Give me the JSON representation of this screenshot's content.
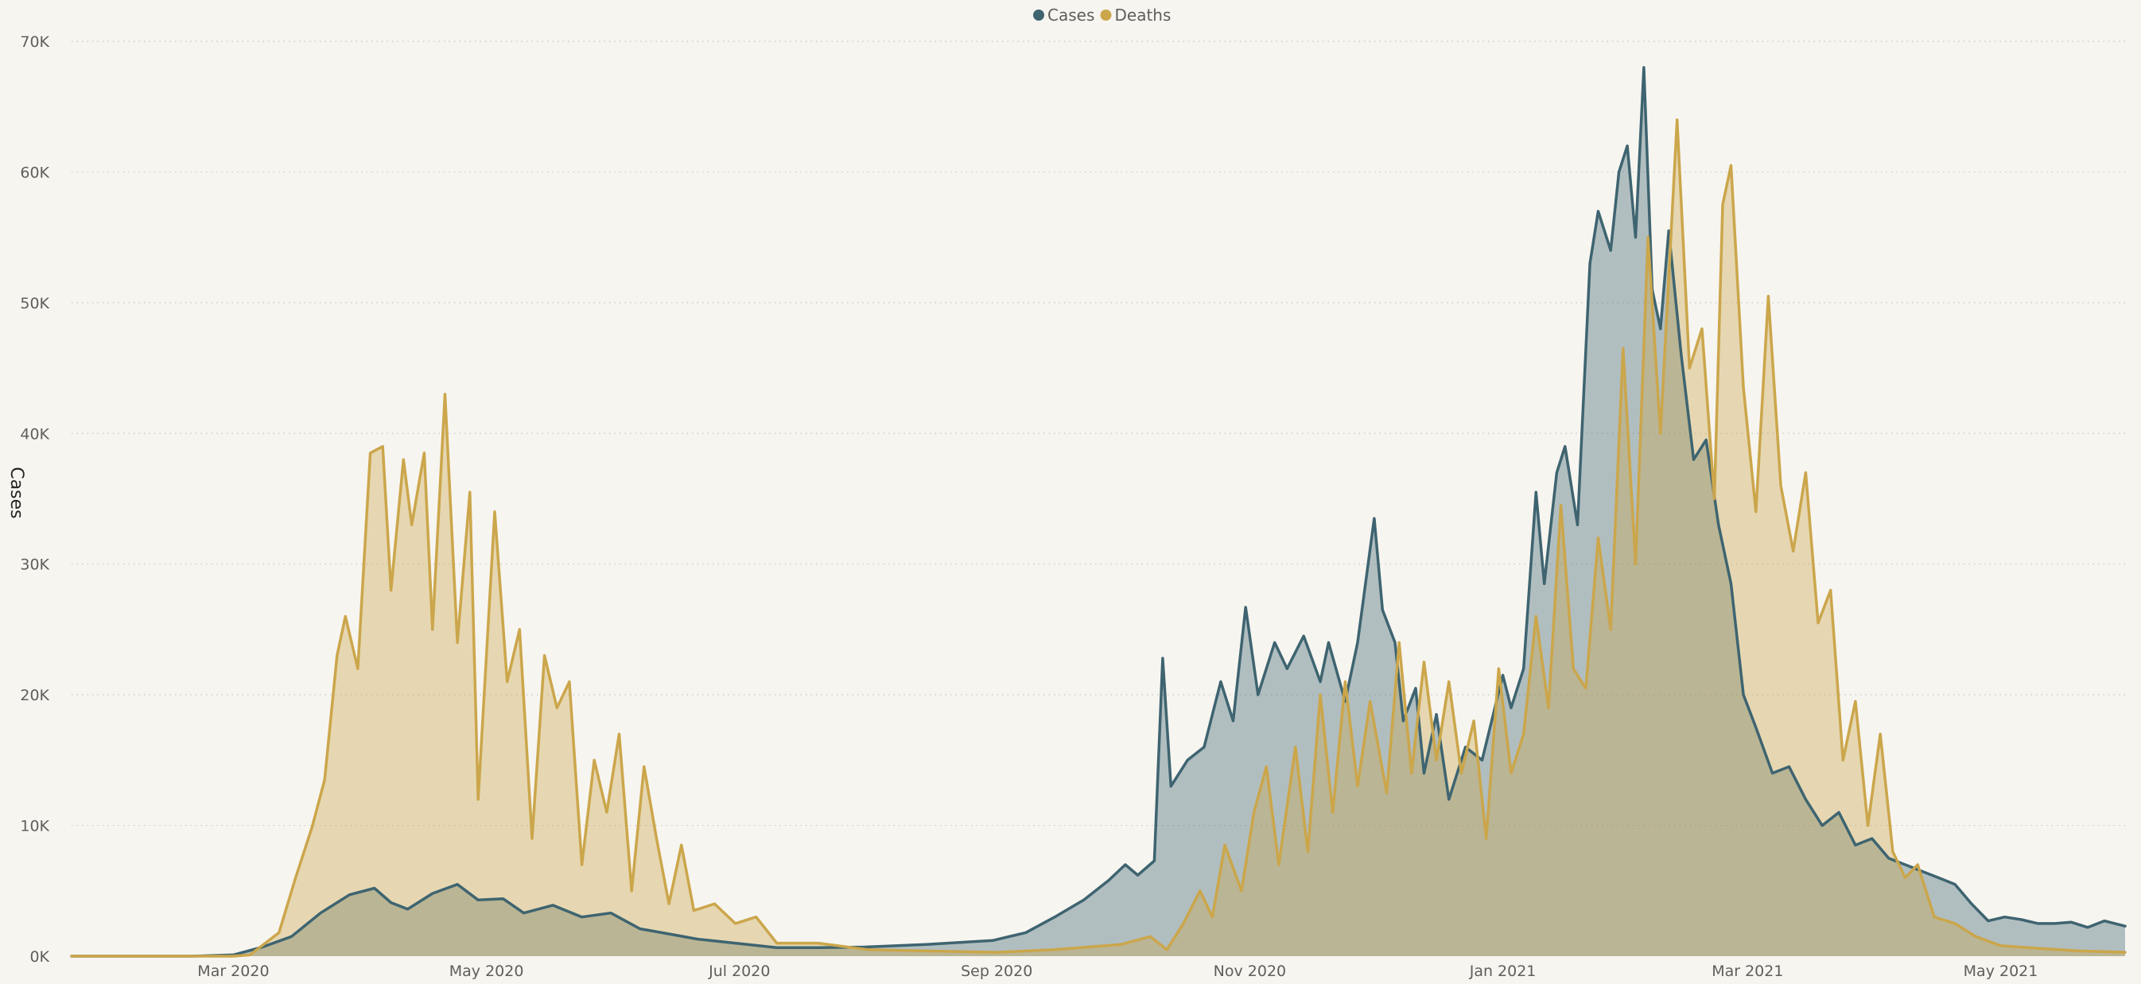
{
  "chart_data": {
    "type": "area",
    "title": "",
    "ylabel": "Cases",
    "xlabel": "",
    "ylim": [
      0,
      70000
    ],
    "xlim": [
      "2020-01-22",
      "2021-05-31"
    ],
    "grid": true,
    "legend_position": "top-center",
    "y_ticks": [
      {
        "value": 0,
        "label": "0K"
      },
      {
        "value": 10000,
        "label": "10K"
      },
      {
        "value": 20000,
        "label": "20K"
      },
      {
        "value": 30000,
        "label": "30K"
      },
      {
        "value": 40000,
        "label": "40K"
      },
      {
        "value": 50000,
        "label": "50K"
      },
      {
        "value": 60000,
        "label": "60K"
      },
      {
        "value": 70000,
        "label": "70K"
      }
    ],
    "x_ticks": [
      {
        "date": "2020-03-01",
        "label": "Mar 2020"
      },
      {
        "date": "2020-05-01",
        "label": "May 2020"
      },
      {
        "date": "2020-07-01",
        "label": "Jul 2020"
      },
      {
        "date": "2020-09-01",
        "label": "Sep 2020"
      },
      {
        "date": "2020-11-01",
        "label": "Nov 2020"
      },
      {
        "date": "2021-01-01",
        "label": "Jan 2021"
      },
      {
        "date": "2021-03-01",
        "label": "Mar 2021"
      },
      {
        "date": "2021-05-01",
        "label": "May 2021"
      }
    ],
    "series": [
      {
        "name": "Cases",
        "color": "#3e6470",
        "fill": "#3e6470",
        "points": [
          [
            "2020-01-22",
            0
          ],
          [
            "2020-02-20",
            0
          ],
          [
            "2020-03-01",
            100
          ],
          [
            "2020-03-08",
            700
          ],
          [
            "2020-03-15",
            1500
          ],
          [
            "2020-03-22",
            3300
          ],
          [
            "2020-03-29",
            4700
          ],
          [
            "2020-04-04",
            5200
          ],
          [
            "2020-04-08",
            4100
          ],
          [
            "2020-04-12",
            3600
          ],
          [
            "2020-04-18",
            4800
          ],
          [
            "2020-04-24",
            5500
          ],
          [
            "2020-04-29",
            4300
          ],
          [
            "2020-05-05",
            4400
          ],
          [
            "2020-05-10",
            3300
          ],
          [
            "2020-05-17",
            3900
          ],
          [
            "2020-05-24",
            3000
          ],
          [
            "2020-05-31",
            3300
          ],
          [
            "2020-06-07",
            2100
          ],
          [
            "2020-06-14",
            1700
          ],
          [
            "2020-06-21",
            1300
          ],
          [
            "2020-06-30",
            1000
          ],
          [
            "2020-07-10",
            650
          ],
          [
            "2020-07-20",
            650
          ],
          [
            "2020-07-31",
            700
          ],
          [
            "2020-08-15",
            900
          ],
          [
            "2020-08-31",
            1200
          ],
          [
            "2020-09-08",
            1800
          ],
          [
            "2020-09-15",
            3000
          ],
          [
            "2020-09-22",
            4300
          ],
          [
            "2020-09-28",
            5800
          ],
          [
            "2020-10-02",
            7000
          ],
          [
            "2020-10-05",
            6200
          ],
          [
            "2020-10-09",
            7300
          ],
          [
            "2020-10-11",
            22800
          ],
          [
            "2020-10-13",
            13000
          ],
          [
            "2020-10-17",
            15000
          ],
          [
            "2020-10-21",
            16000
          ],
          [
            "2020-10-25",
            21000
          ],
          [
            "2020-10-28",
            18000
          ],
          [
            "2020-10-31",
            26700
          ],
          [
            "2020-11-03",
            20000
          ],
          [
            "2020-11-07",
            24000
          ],
          [
            "2020-11-10",
            22000
          ],
          [
            "2020-11-14",
            24500
          ],
          [
            "2020-11-18",
            21000
          ],
          [
            "2020-11-20",
            24000
          ],
          [
            "2020-11-24",
            19500
          ],
          [
            "2020-11-27",
            24000
          ],
          [
            "2020-12-01",
            33500
          ],
          [
            "2020-12-03",
            26500
          ],
          [
            "2020-12-06",
            24000
          ],
          [
            "2020-12-08",
            18000
          ],
          [
            "2020-12-11",
            20500
          ],
          [
            "2020-12-13",
            14000
          ],
          [
            "2020-12-16",
            18500
          ],
          [
            "2020-12-19",
            12000
          ],
          [
            "2020-12-23",
            16000
          ],
          [
            "2020-12-27",
            15000
          ],
          [
            "2021-01-01",
            21500
          ],
          [
            "2021-01-03",
            19000
          ],
          [
            "2021-01-06",
            22000
          ],
          [
            "2021-01-09",
            35500
          ],
          [
            "2021-01-11",
            28500
          ],
          [
            "2021-01-14",
            37000
          ],
          [
            "2021-01-16",
            39000
          ],
          [
            "2021-01-19",
            33000
          ],
          [
            "2021-01-22",
            53000
          ],
          [
            "2021-01-24",
            57000
          ],
          [
            "2021-01-27",
            54000
          ],
          [
            "2021-01-29",
            60000
          ],
          [
            "2021-01-31",
            62000
          ],
          [
            "2021-02-02",
            55000
          ],
          [
            "2021-02-04",
            68000
          ],
          [
            "2021-02-06",
            51000
          ],
          [
            "2021-02-08",
            48000
          ],
          [
            "2021-02-10",
            55500
          ],
          [
            "2021-02-13",
            46000
          ],
          [
            "2021-02-16",
            38000
          ],
          [
            "2021-02-19",
            39500
          ],
          [
            "2021-02-22",
            33000
          ],
          [
            "2021-02-25",
            28500
          ],
          [
            "2021-02-28",
            20000
          ],
          [
            "2021-03-03",
            17500
          ],
          [
            "2021-03-07",
            14000
          ],
          [
            "2021-03-11",
            14500
          ],
          [
            "2021-03-15",
            12000
          ],
          [
            "2021-03-19",
            10000
          ],
          [
            "2021-03-23",
            11000
          ],
          [
            "2021-03-27",
            8500
          ],
          [
            "2021-03-31",
            9000
          ],
          [
            "2021-04-04",
            7500
          ],
          [
            "2021-04-08",
            7000
          ],
          [
            "2021-04-12",
            6500
          ],
          [
            "2021-04-16",
            6000
          ],
          [
            "2021-04-20",
            5500
          ],
          [
            "2021-04-24",
            4000
          ],
          [
            "2021-04-28",
            2700
          ],
          [
            "2021-05-02",
            3000
          ],
          [
            "2021-05-06",
            2800
          ],
          [
            "2021-05-10",
            2500
          ],
          [
            "2021-05-14",
            2500
          ],
          [
            "2021-05-18",
            2600
          ],
          [
            "2021-05-22",
            2200
          ],
          [
            "2021-05-26",
            2700
          ],
          [
            "2021-05-31",
            2300
          ]
        ]
      },
      {
        "name": "Deaths",
        "color": "#cba64b",
        "fill": "#cba64b",
        "points": [
          [
            "2020-01-22",
            0
          ],
          [
            "2020-03-01",
            0
          ],
          [
            "2020-03-05",
            100
          ],
          [
            "2020-03-12",
            1800
          ],
          [
            "2020-03-16",
            6000
          ],
          [
            "2020-03-20",
            9900
          ],
          [
            "2020-03-23",
            13500
          ],
          [
            "2020-03-26",
            23000
          ],
          [
            "2020-03-28",
            26000
          ],
          [
            "2020-03-31",
            22000
          ],
          [
            "2020-04-03",
            38500
          ],
          [
            "2020-04-06",
            39000
          ],
          [
            "2020-04-08",
            28000
          ],
          [
            "2020-04-11",
            38000
          ],
          [
            "2020-04-13",
            33000
          ],
          [
            "2020-04-16",
            38500
          ],
          [
            "2020-04-18",
            25000
          ],
          [
            "2020-04-21",
            43000
          ],
          [
            "2020-04-24",
            24000
          ],
          [
            "2020-04-27",
            35500
          ],
          [
            "2020-04-29",
            12000
          ],
          [
            "2020-05-03",
            34000
          ],
          [
            "2020-05-06",
            21000
          ],
          [
            "2020-05-09",
            25000
          ],
          [
            "2020-05-12",
            9000
          ],
          [
            "2020-05-15",
            23000
          ],
          [
            "2020-05-18",
            19000
          ],
          [
            "2020-05-21",
            21000
          ],
          [
            "2020-05-24",
            7000
          ],
          [
            "2020-05-27",
            15000
          ],
          [
            "2020-05-30",
            11000
          ],
          [
            "2020-06-02",
            17000
          ],
          [
            "2020-06-05",
            5000
          ],
          [
            "2020-06-08",
            14500
          ],
          [
            "2020-06-11",
            9000
          ],
          [
            "2020-06-14",
            4000
          ],
          [
            "2020-06-17",
            8500
          ],
          [
            "2020-06-20",
            3500
          ],
          [
            "2020-06-25",
            4000
          ],
          [
            "2020-06-30",
            2500
          ],
          [
            "2020-07-05",
            3000
          ],
          [
            "2020-07-10",
            1000
          ],
          [
            "2020-07-20",
            1000
          ],
          [
            "2020-08-01",
            500
          ],
          [
            "2020-08-15",
            400
          ],
          [
            "2020-09-01",
            300
          ],
          [
            "2020-09-15",
            500
          ],
          [
            "2020-10-01",
            900
          ],
          [
            "2020-10-08",
            1500
          ],
          [
            "2020-10-12",
            500
          ],
          [
            "2020-10-16",
            2500
          ],
          [
            "2020-10-20",
            5000
          ],
          [
            "2020-10-23",
            3000
          ],
          [
            "2020-10-26",
            8500
          ],
          [
            "2020-10-30",
            5000
          ],
          [
            "2020-11-02",
            11000
          ],
          [
            "2020-11-05",
            14500
          ],
          [
            "2020-11-08",
            7000
          ],
          [
            "2020-11-12",
            16000
          ],
          [
            "2020-11-15",
            8000
          ],
          [
            "2020-11-18",
            20000
          ],
          [
            "2020-11-21",
            11000
          ],
          [
            "2020-11-24",
            21000
          ],
          [
            "2020-11-27",
            13000
          ],
          [
            "2020-11-30",
            19500
          ],
          [
            "2020-12-04",
            12500
          ],
          [
            "2020-12-07",
            24000
          ],
          [
            "2020-12-10",
            14000
          ],
          [
            "2020-12-13",
            22500
          ],
          [
            "2020-12-16",
            15000
          ],
          [
            "2020-12-19",
            21000
          ],
          [
            "2020-12-22",
            14000
          ],
          [
            "2020-12-25",
            18000
          ],
          [
            "2020-12-28",
            9000
          ],
          [
            "2020-12-31",
            22000
          ],
          [
            "2021-01-03",
            14000
          ],
          [
            "2021-01-06",
            17000
          ],
          [
            "2021-01-09",
            26000
          ],
          [
            "2021-01-12",
            19000
          ],
          [
            "2021-01-15",
            34500
          ],
          [
            "2021-01-18",
            22000
          ],
          [
            "2021-01-21",
            20500
          ],
          [
            "2021-01-24",
            32000
          ],
          [
            "2021-01-27",
            25000
          ],
          [
            "2021-01-30",
            46500
          ],
          [
            "2021-02-02",
            30000
          ],
          [
            "2021-02-05",
            55000
          ],
          [
            "2021-02-08",
            40000
          ],
          [
            "2021-02-12",
            64000
          ],
          [
            "2021-02-15",
            45000
          ],
          [
            "2021-02-18",
            48000
          ],
          [
            "2021-02-21",
            35000
          ],
          [
            "2021-02-23",
            57500
          ],
          [
            "2021-02-25",
            60500
          ],
          [
            "2021-02-28",
            43500
          ],
          [
            "2021-03-03",
            34000
          ],
          [
            "2021-03-06",
            50500
          ],
          [
            "2021-03-09",
            36000
          ],
          [
            "2021-03-12",
            31000
          ],
          [
            "2021-03-15",
            37000
          ],
          [
            "2021-03-18",
            25500
          ],
          [
            "2021-03-21",
            28000
          ],
          [
            "2021-03-24",
            15000
          ],
          [
            "2021-03-27",
            19500
          ],
          [
            "2021-03-30",
            10000
          ],
          [
            "2021-04-02",
            17000
          ],
          [
            "2021-04-05",
            8000
          ],
          [
            "2021-04-08",
            6000
          ],
          [
            "2021-04-11",
            7000
          ],
          [
            "2021-04-15",
            3000
          ],
          [
            "2021-04-20",
            2500
          ],
          [
            "2021-04-25",
            1500
          ],
          [
            "2021-05-01",
            800
          ],
          [
            "2021-05-10",
            600
          ],
          [
            "2021-05-20",
            400
          ],
          [
            "2021-05-31",
            300
          ]
        ]
      }
    ]
  }
}
